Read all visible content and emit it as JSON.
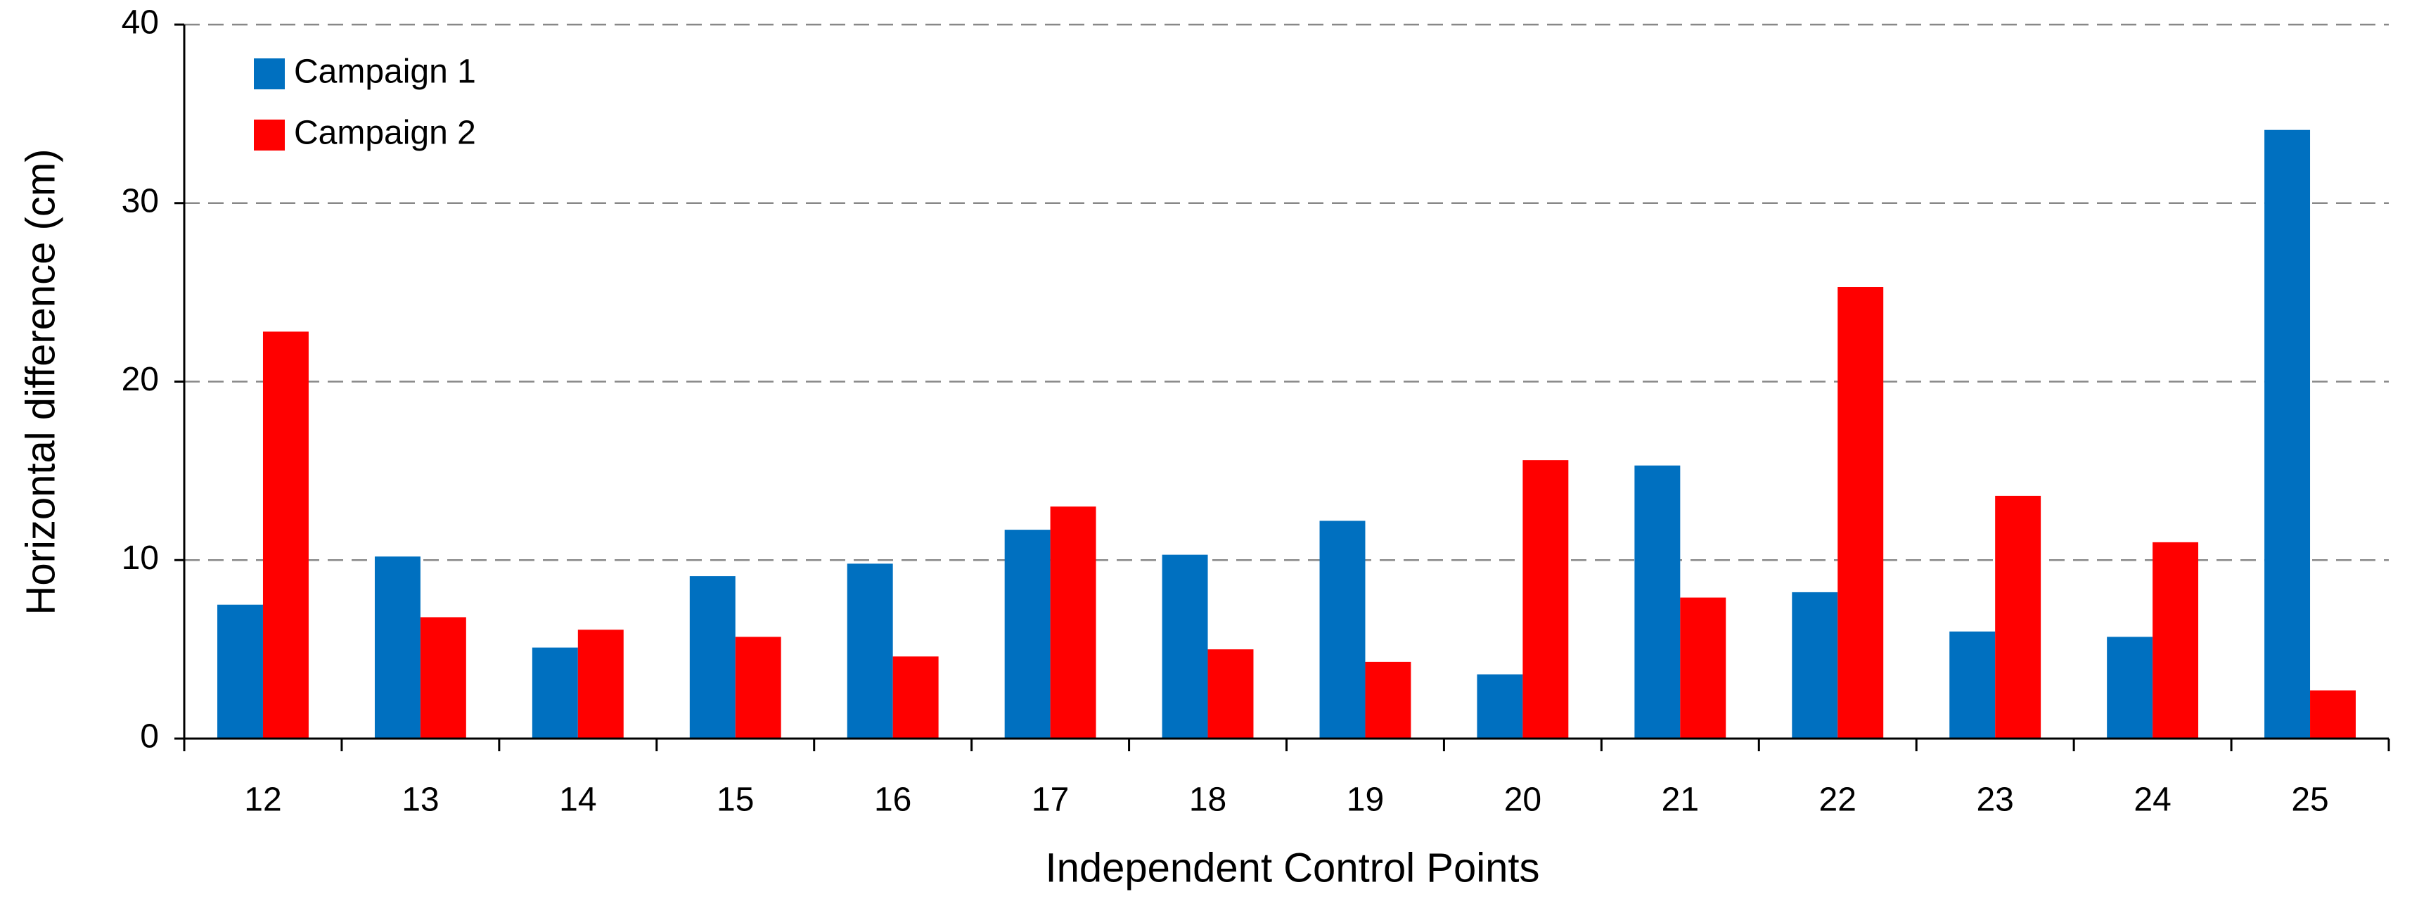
{
  "chart_data": {
    "type": "bar",
    "categories": [
      "12",
      "13",
      "14",
      "15",
      "16",
      "17",
      "18",
      "19",
      "20",
      "21",
      "22",
      "23",
      "24",
      "25"
    ],
    "series": [
      {
        "name": "Campaign 1",
        "color": "#0070c0",
        "values": [
          7.5,
          10.2,
          5.1,
          9.1,
          9.8,
          11.7,
          10.3,
          12.2,
          3.6,
          15.3,
          8.2,
          6.0,
          5.7,
          34.1
        ]
      },
      {
        "name": "Campaign 2",
        "color": "#ff0000",
        "values": [
          22.8,
          6.8,
          6.1,
          5.7,
          4.6,
          13.0,
          5.0,
          4.3,
          15.6,
          7.9,
          25.3,
          13.6,
          11.0,
          2.7
        ]
      }
    ],
    "x_label": "Independent Control Points",
    "y_label": "Horizontal difference (cm)",
    "ylim": [
      0,
      40
    ],
    "yticks": [
      0,
      10,
      20,
      30,
      40
    ],
    "grid": true,
    "legend": "upper left"
  }
}
